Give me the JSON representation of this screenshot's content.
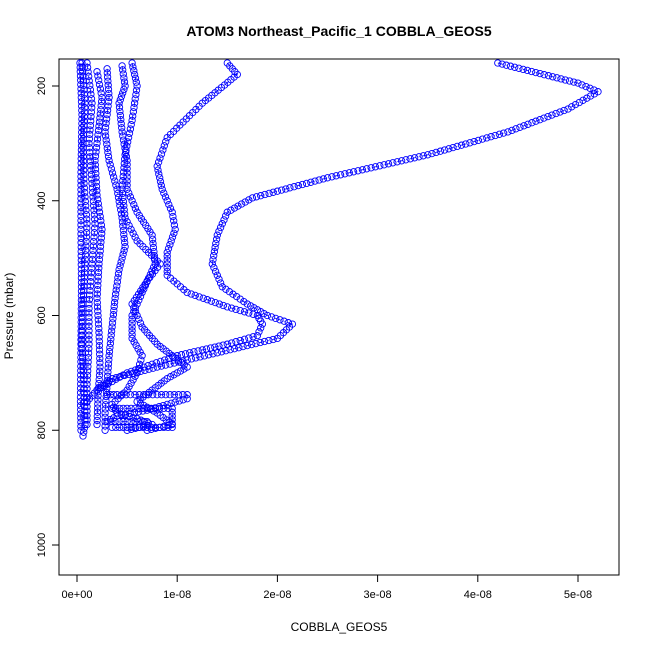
{
  "chart_data": {
    "type": "scatter",
    "title": "ATOM3 Northeast_Pacific_1 COBBLA_GEOS5",
    "xlabel": "COBBLA_GEOS5",
    "ylabel": "Pressure (mbar)",
    "xlim": [
      0,
      5.2e-08
    ],
    "ylim": [
      1050,
      155
    ],
    "y_inverted": true,
    "grid": false,
    "legend": "none",
    "x_ticks": [
      {
        "value": 0,
        "label": "0e+00"
      },
      {
        "value": 1e-08,
        "label": "1e-08"
      },
      {
        "value": 2e-08,
        "label": "2e-08"
      },
      {
        "value": 3e-08,
        "label": "3e-08"
      },
      {
        "value": 4e-08,
        "label": "4e-08"
      },
      {
        "value": 5e-08,
        "label": "5e-08"
      }
    ],
    "y_ticks": [
      {
        "value": 200,
        "label": "200"
      },
      {
        "value": 400,
        "label": "400"
      },
      {
        "value": 600,
        "label": "600"
      },
      {
        "value": 800,
        "label": "800"
      },
      {
        "value": 1000,
        "label": "1000"
      }
    ],
    "series_color": "#0000ff",
    "marker": "open-circle",
    "series": [
      {
        "x": [
          4.2e-08,
          5e-08,
          5.2e-08,
          4.9e-08,
          4.3e-08,
          3.5e-08,
          2.5e-08,
          1.75e-08,
          1.5e-08,
          1.4e-08,
          1.35e-08,
          1.45e-08,
          1.7e-08,
          1.9e-08,
          2.15e-08,
          2e-08,
          1.4e-08,
          8e-09,
          3.5e-09,
          2e-09,
          1e-09
        ],
        "y": [
          160,
          195,
          210,
          240,
          280,
          320,
          360,
          395,
          420,
          460,
          510,
          550,
          580,
          600,
          615,
          640,
          665,
          690,
          710,
          730,
          750
        ]
      },
      {
        "x": [
          1.5e-08,
          1.6e-08,
          1.25e-08,
          9e-09,
          8e-09,
          8.5e-09,
          9.5e-09,
          9.8e-09,
          9e-09,
          9e-09,
          1.1e-08,
          1.5e-08,
          1.8e-08,
          1.85e-08,
          1.8e-08,
          1.5e-08,
          1e-08,
          5e-09,
          2e-09
        ],
        "y": [
          160,
          180,
          230,
          290,
          340,
          380,
          420,
          450,
          490,
          530,
          560,
          585,
          600,
          615,
          635,
          650,
          670,
          700,
          730
        ]
      },
      {
        "x": [
          5.5e-09,
          6e-09,
          5.5e-09,
          4.8e-09,
          4.5e-09,
          4.8e-09,
          6e-09,
          8.3e-09,
          7e-09,
          5.5e-09,
          6.5e-09,
          8e-09,
          9.5e-09,
          1.1e-08,
          9e-09,
          7.5e-09,
          6e-09,
          8e-09,
          9.5e-09,
          7e-09
        ],
        "y": [
          160,
          200,
          260,
          320,
          380,
          430,
          470,
          510,
          540,
          580,
          620,
          650,
          670,
          690,
          710,
          730,
          750,
          770,
          790,
          800
        ]
      },
      {
        "x": [
          4.5e-09,
          4.8e-09,
          4.2e-09,
          4.5e-09,
          5e-09,
          5e-09,
          6e-09,
          7.5e-09,
          7.8e-09,
          6.5e-09,
          5.5e-09,
          5.5e-09,
          6.5e-09,
          6e-09,
          5e-09,
          3.5e-09,
          4e-09,
          6e-09,
          7.5e-09,
          5e-09
        ],
        "y": [
          165,
          200,
          230,
          280,
          330,
          380,
          420,
          460,
          510,
          560,
          600,
          640,
          670,
          700,
          730,
          755,
          770,
          780,
          790,
          800
        ]
      },
      {
        "x": [
          3e-09,
          3.2e-09,
          2.8e-09,
          3.2e-09,
          4e-09,
          4.5e-09,
          4.8e-09,
          4.2e-09,
          3.8e-09,
          3.5e-09,
          3.2e-09,
          3e-09,
          2.8e-09,
          2.8e-09
        ],
        "y": [
          170,
          220,
          280,
          330,
          380,
          430,
          480,
          520,
          570,
          620,
          670,
          720,
          770,
          800
        ]
      },
      {
        "x": [
          2e-09,
          2.5e-09,
          2.2e-09,
          1.8e-09,
          2e-09,
          2.5e-09,
          2.2e-09,
          2e-09,
          2.2e-09,
          2.3e-09,
          2.1e-09,
          2e-09
        ],
        "y": [
          175,
          220,
          270,
          330,
          390,
          450,
          510,
          570,
          630,
          690,
          740,
          790
        ]
      },
      {
        "x": [
          1e-09,
          1.5e-09,
          1.2e-09,
          1.5e-09,
          1.8e-09,
          1.5e-09,
          1.2e-09,
          1.2e-09,
          1e-09,
          1e-09
        ],
        "y": [
          160,
          230,
          300,
          370,
          440,
          510,
          580,
          650,
          720,
          790
        ]
      },
      {
        "x": [
          5e-10,
          8e-10,
          6e-10,
          7e-10,
          1e-09,
          8e-10,
          6e-10,
          5e-10,
          7e-10,
          8e-10,
          6e-10
        ],
        "y": [
          160,
          230,
          300,
          370,
          440,
          510,
          580,
          650,
          720,
          790,
          810
        ]
      },
      {
        "x": [
          3e-10,
          5e-10,
          4e-10,
          4e-10,
          4.5e-10,
          4e-10,
          3.5e-10,
          4e-10
        ],
        "y": [
          160,
          250,
          350,
          450,
          550,
          650,
          750,
          800
        ]
      },
      {
        "x": [
          3e-09,
          4e-09,
          8e-09,
          1.1e-08,
          1.1e-08,
          9e-09,
          7e-09,
          4e-09,
          3e-09,
          5e-09,
          7e-09
        ],
        "y": [
          738,
          738,
          738,
          738,
          745,
          755,
          765,
          775,
          785,
          785,
          785
        ]
      },
      {
        "x": [
          3.5e-09,
          5e-09,
          7e-09,
          9.5e-09,
          9.5e-09,
          7e-09,
          5e-09,
          3.5e-09
        ],
        "y": [
          762,
          762,
          762,
          762,
          795,
          795,
          795,
          795
        ]
      }
    ]
  }
}
